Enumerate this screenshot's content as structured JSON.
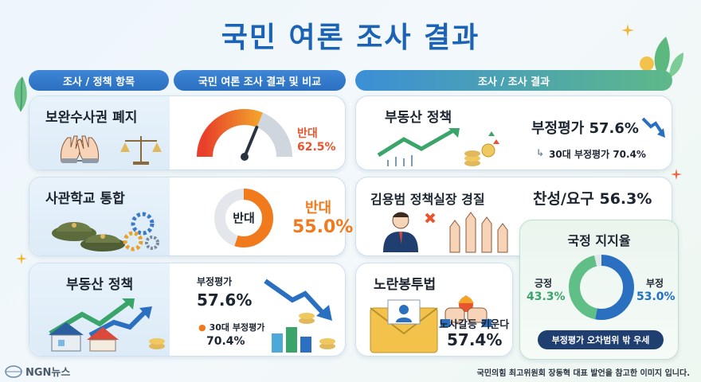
{
  "title": "국민 여론 조사 결과",
  "headers": {
    "left_items": "조사 / 정책 항목",
    "left_results": "국민 여론 조사 결과 및 비교",
    "right": "조사 / 조사 결과"
  },
  "left_cards": [
    {
      "label": "보완수사권 폐지",
      "result_label": "반대",
      "result_value": "62.5%",
      "gauge_fraction": 0.625,
      "icon": "handcuffs-scales-icon"
    },
    {
      "label": "사관학교 통합",
      "donut_center": "반대",
      "result_label": "반대",
      "result_value": "55.0%",
      "donut_fraction": 0.55,
      "icon": "military-caps-gears-icon"
    },
    {
      "label": "부동산 정책",
      "main_label": "부정평가",
      "main_value": "57.6%",
      "sub_label": "30대 부정평가",
      "sub_value": "70.4%",
      "icon": "houses-rising-arrow-icon"
    }
  ],
  "right_cards": [
    {
      "label": "부동산 정책",
      "main_text": "부정평가 57.6%",
      "sub_text": "30대 부정평가 70.4%",
      "icon": "rising-line-chart-coins-icon"
    },
    {
      "label": "김용범 정책실장 경질",
      "result_text": "찬성/요구 56.3%",
      "icon": "businessman-raised-hands-icon"
    },
    {
      "label": "노란봉투법",
      "result_label": "노사갈등 키운다",
      "result_value": "57.4%",
      "icon": "envelope-fists-icon"
    }
  ],
  "approval": {
    "title": "국정 지지율",
    "positive_label": "긍정",
    "positive_value": "43.3%",
    "negative_label": "부정",
    "negative_value": "53.0%",
    "positive_fraction": 0.433,
    "negative_fraction": 0.53,
    "note": "부정평가 오차범위 밖 우세"
  },
  "colors": {
    "accent_blue": "#1b63b5",
    "orange": "#f07a1c",
    "green": "#3aa56a",
    "navy": "#1f6fc2"
  },
  "footer": {
    "logo": "NGN뉴스",
    "note": "국민의힘 최고위원회 장동혁 대표 발언을 참고한 이미지 입니다."
  }
}
